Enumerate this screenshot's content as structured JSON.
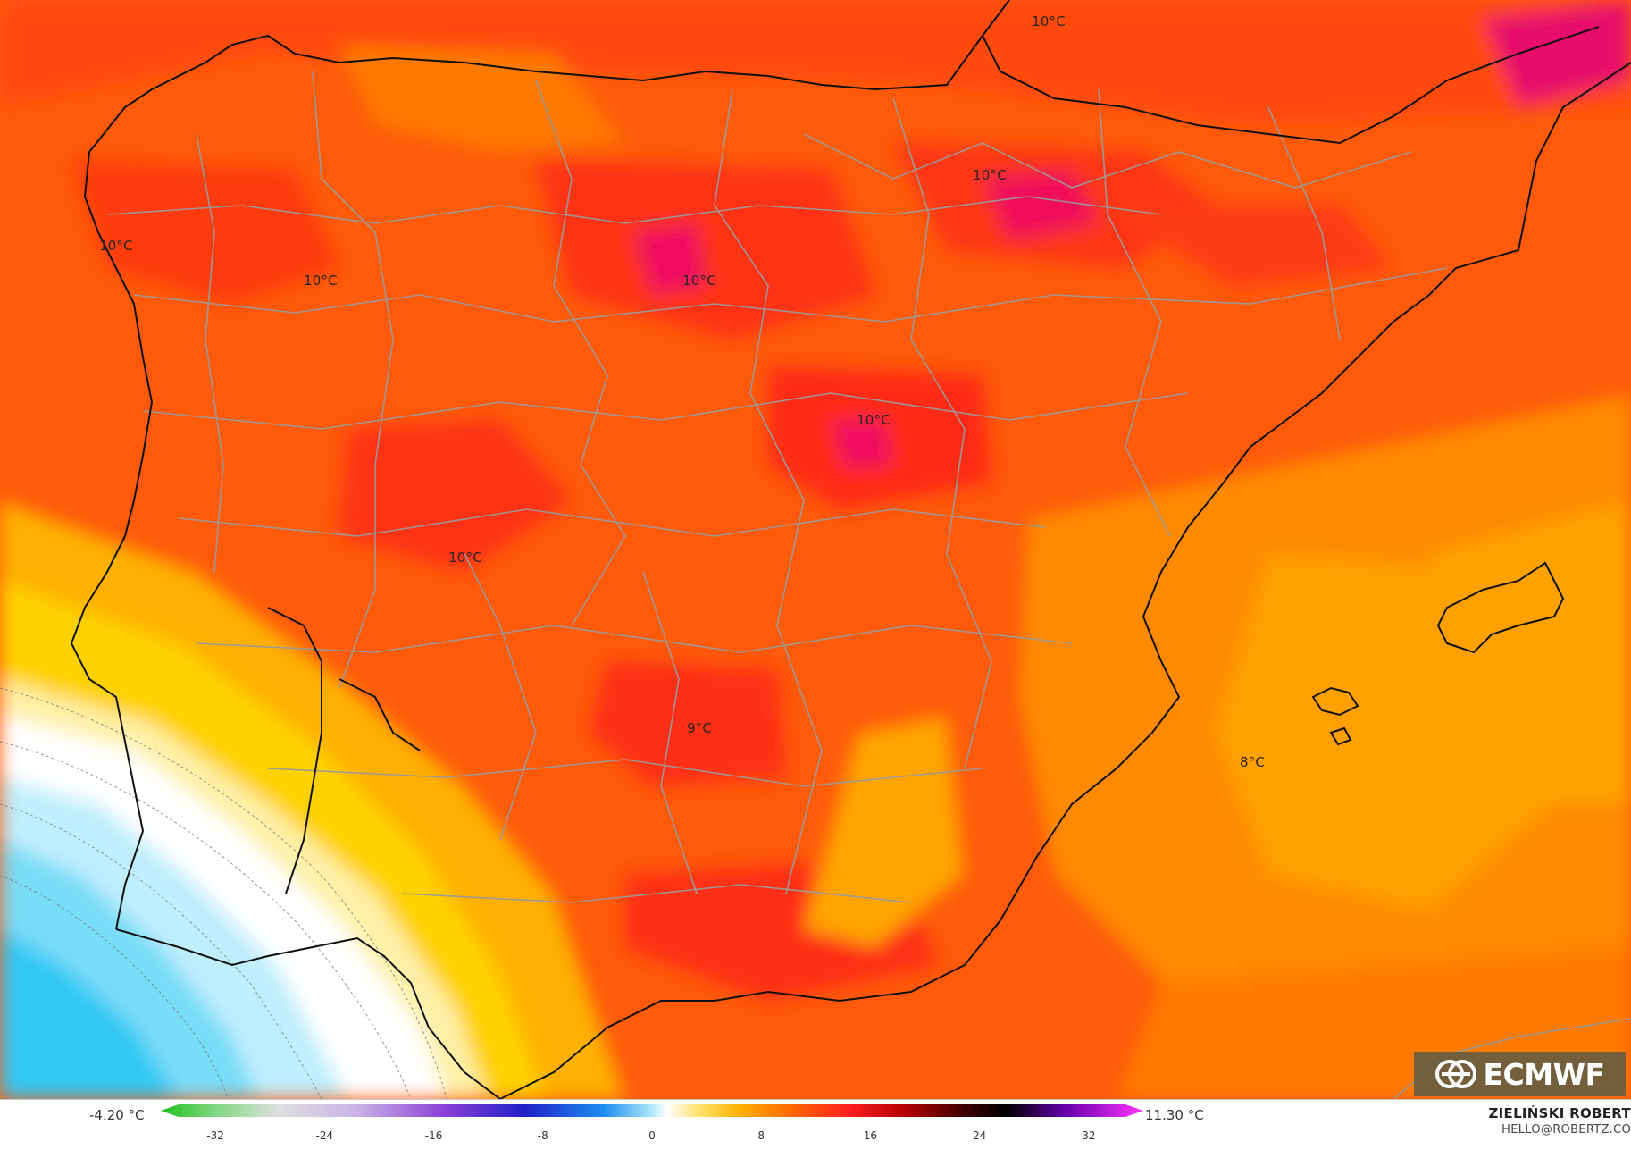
{
  "map": {
    "labels": [
      {
        "text": "10°C"
      },
      {
        "text": "10°C"
      },
      {
        "text": "10°C"
      },
      {
        "text": "10°C"
      },
      {
        "text": "10°C"
      },
      {
        "text": "10°C"
      },
      {
        "text": "10°C"
      },
      {
        "text": "9°C"
      },
      {
        "text": "8°C"
      }
    ]
  },
  "logo": {
    "text": "ECMWF"
  },
  "legend": {
    "min_value": "-4.20 °C",
    "max_value": "11.30 °C",
    "ticks": [
      "-32",
      "-24",
      "-16",
      "-8",
      "0",
      "8",
      "16",
      "24",
      "32"
    ],
    "range": [
      -36,
      36
    ]
  },
  "author": {
    "name": "ZIELIŃSKI ROBERT",
    "email": "HELLO@ROBERTZ.CO"
  }
}
